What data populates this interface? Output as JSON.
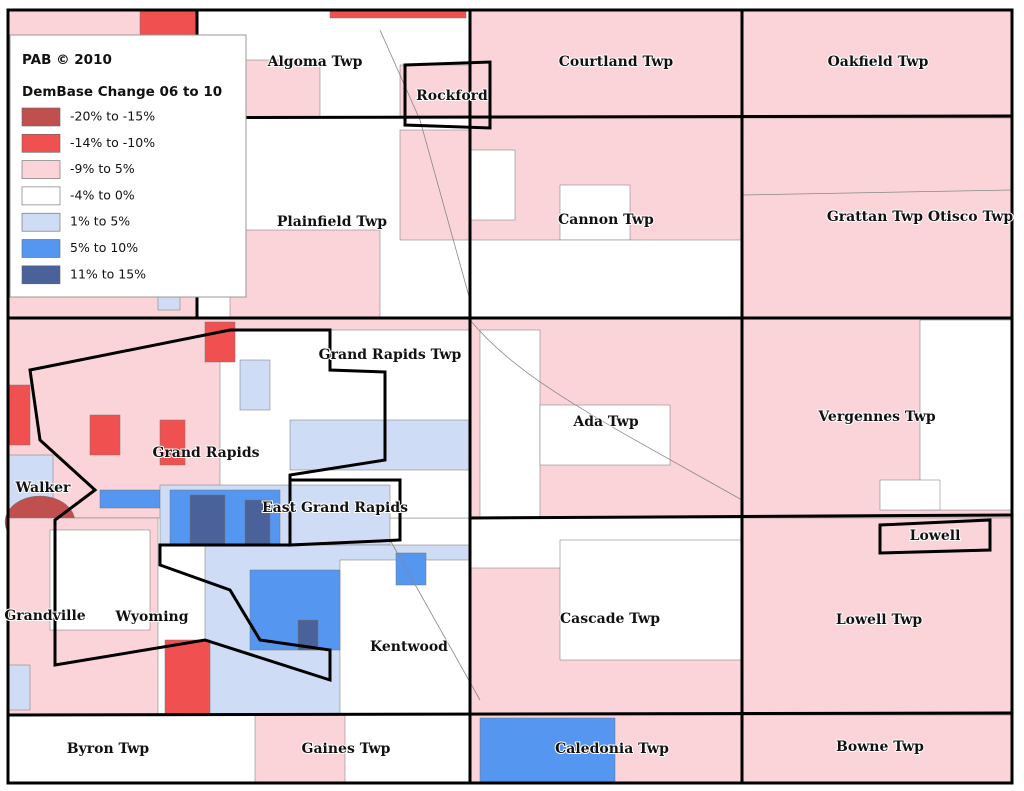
{
  "credit": "PAB © 2010",
  "legend": {
    "title": "DemBase Change 06 to 10",
    "items": [
      {
        "label": "-20% to -15%",
        "color": "#c0504d"
      },
      {
        "label": "-14% to -10%",
        "color": "#f05050"
      },
      {
        "label": "-9% to 5%",
        "color": "#fad4d8"
      },
      {
        "label": "-4% to 0%",
        "color": "#ffffff"
      },
      {
        "label": "1% to 5%",
        "color": "#cfdcf5"
      },
      {
        "label": "5% to 10%",
        "color": "#5596f0"
      },
      {
        "label": "11% to 15%",
        "color": "#4a6199"
      }
    ]
  },
  "places": [
    "Algoma Twp",
    "Courtland Twp",
    "Oakfield Twp",
    "Rockford",
    "Plainfield Twp",
    "Cannon Twp",
    "Grattan Twp Otisco Twp",
    "Grand Rapids Twp",
    "Ada Twp",
    "Vergennes Twp",
    "Grand Rapids",
    "Walker",
    "East Grand Rapids",
    "Lowell",
    "Grandville",
    "Wyoming",
    "Cascade Twp",
    "Lowell Twp",
    "Kentwood",
    "Byron Twp",
    "Gaines Twp",
    "Caledonia Twp",
    "Bowne Twp"
  ]
}
